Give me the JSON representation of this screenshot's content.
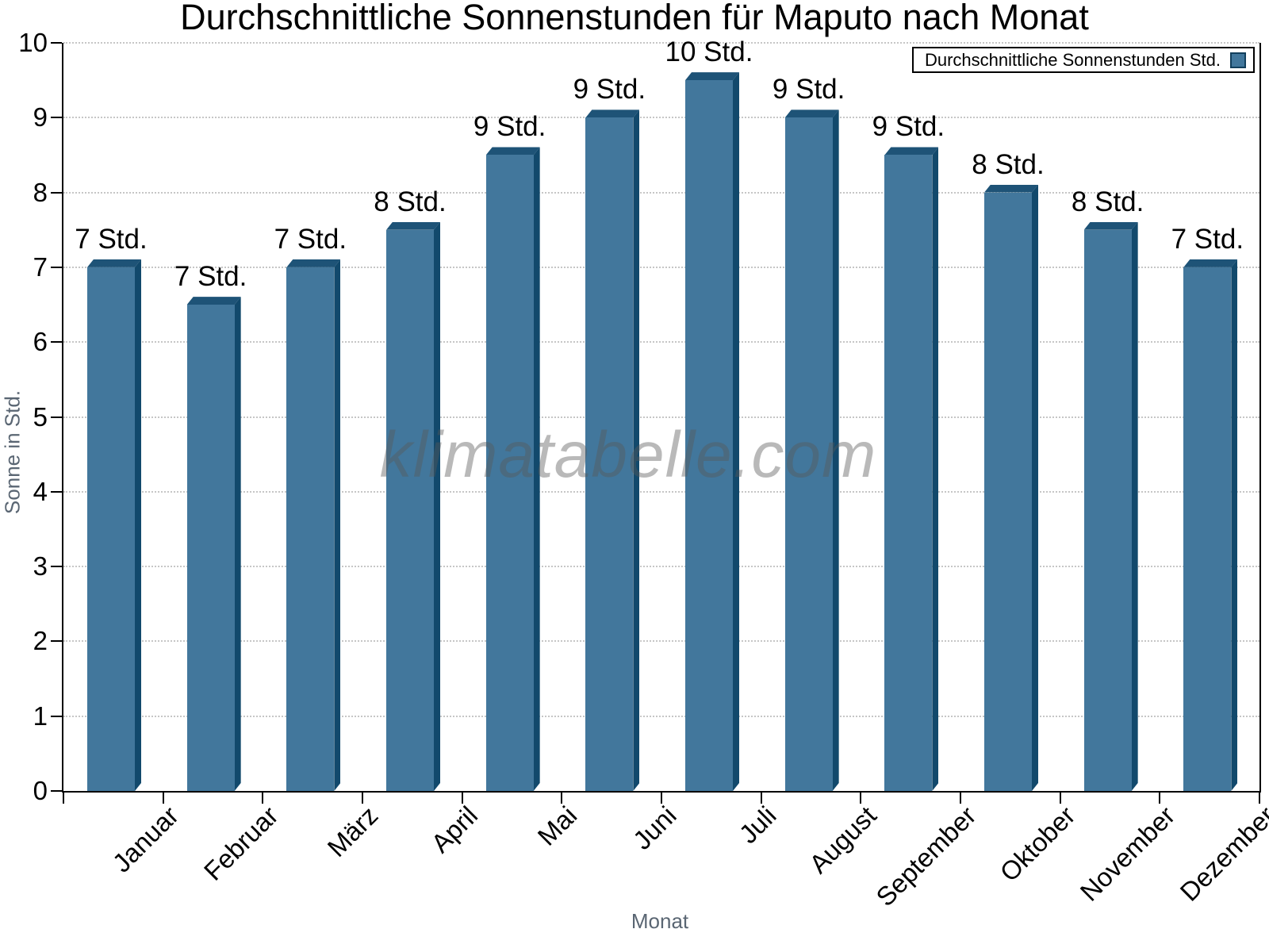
{
  "title": "Durchschnittliche Sonnenstunden für Maputo nach Monat",
  "watermark": "klimatabelle.com",
  "legend": {
    "label": "Durchschnittliche Sonnenstunden Std.",
    "position": "top-right"
  },
  "chart_data": {
    "type": "bar",
    "title": "Durchschnittliche Sonnenstunden für Maputo nach Monat",
    "categories": [
      "Januar",
      "Februar",
      "März",
      "April",
      "Mai",
      "Juni",
      "Juli",
      "August",
      "September",
      "Oktober",
      "November",
      "Dezember"
    ],
    "values": [
      7,
      6.5,
      7,
      7.5,
      8.5,
      9,
      9.5,
      9,
      8.5,
      8,
      7.5,
      7
    ],
    "bar_labels": [
      "7 Std.",
      "7 Std.",
      "7 Std.",
      "8 Std.",
      "9 Std.",
      "9 Std.",
      "10 Std.",
      "9 Std.",
      "9 Std.",
      "8 Std.",
      "8 Std.",
      "7 Std."
    ],
    "xlabel": "Monat",
    "ylabel": "Sonne in Std.",
    "ylim": [
      0,
      10
    ],
    "y_ticks": [
      0,
      1,
      2,
      3,
      4,
      5,
      6,
      7,
      8,
      9,
      10
    ],
    "grid": "horizontal-dotted",
    "legend_entries": [
      "Durchschnittliche Sonnenstunden Std."
    ],
    "legend_position": "top-right",
    "colors": {
      "bar_face": "#42779c",
      "bar_top": "#1e5377",
      "bar_side": "#12496c",
      "axis_text": "#5a6673",
      "grid_line": "#c6c6c6",
      "axis_line": "#000000"
    }
  }
}
